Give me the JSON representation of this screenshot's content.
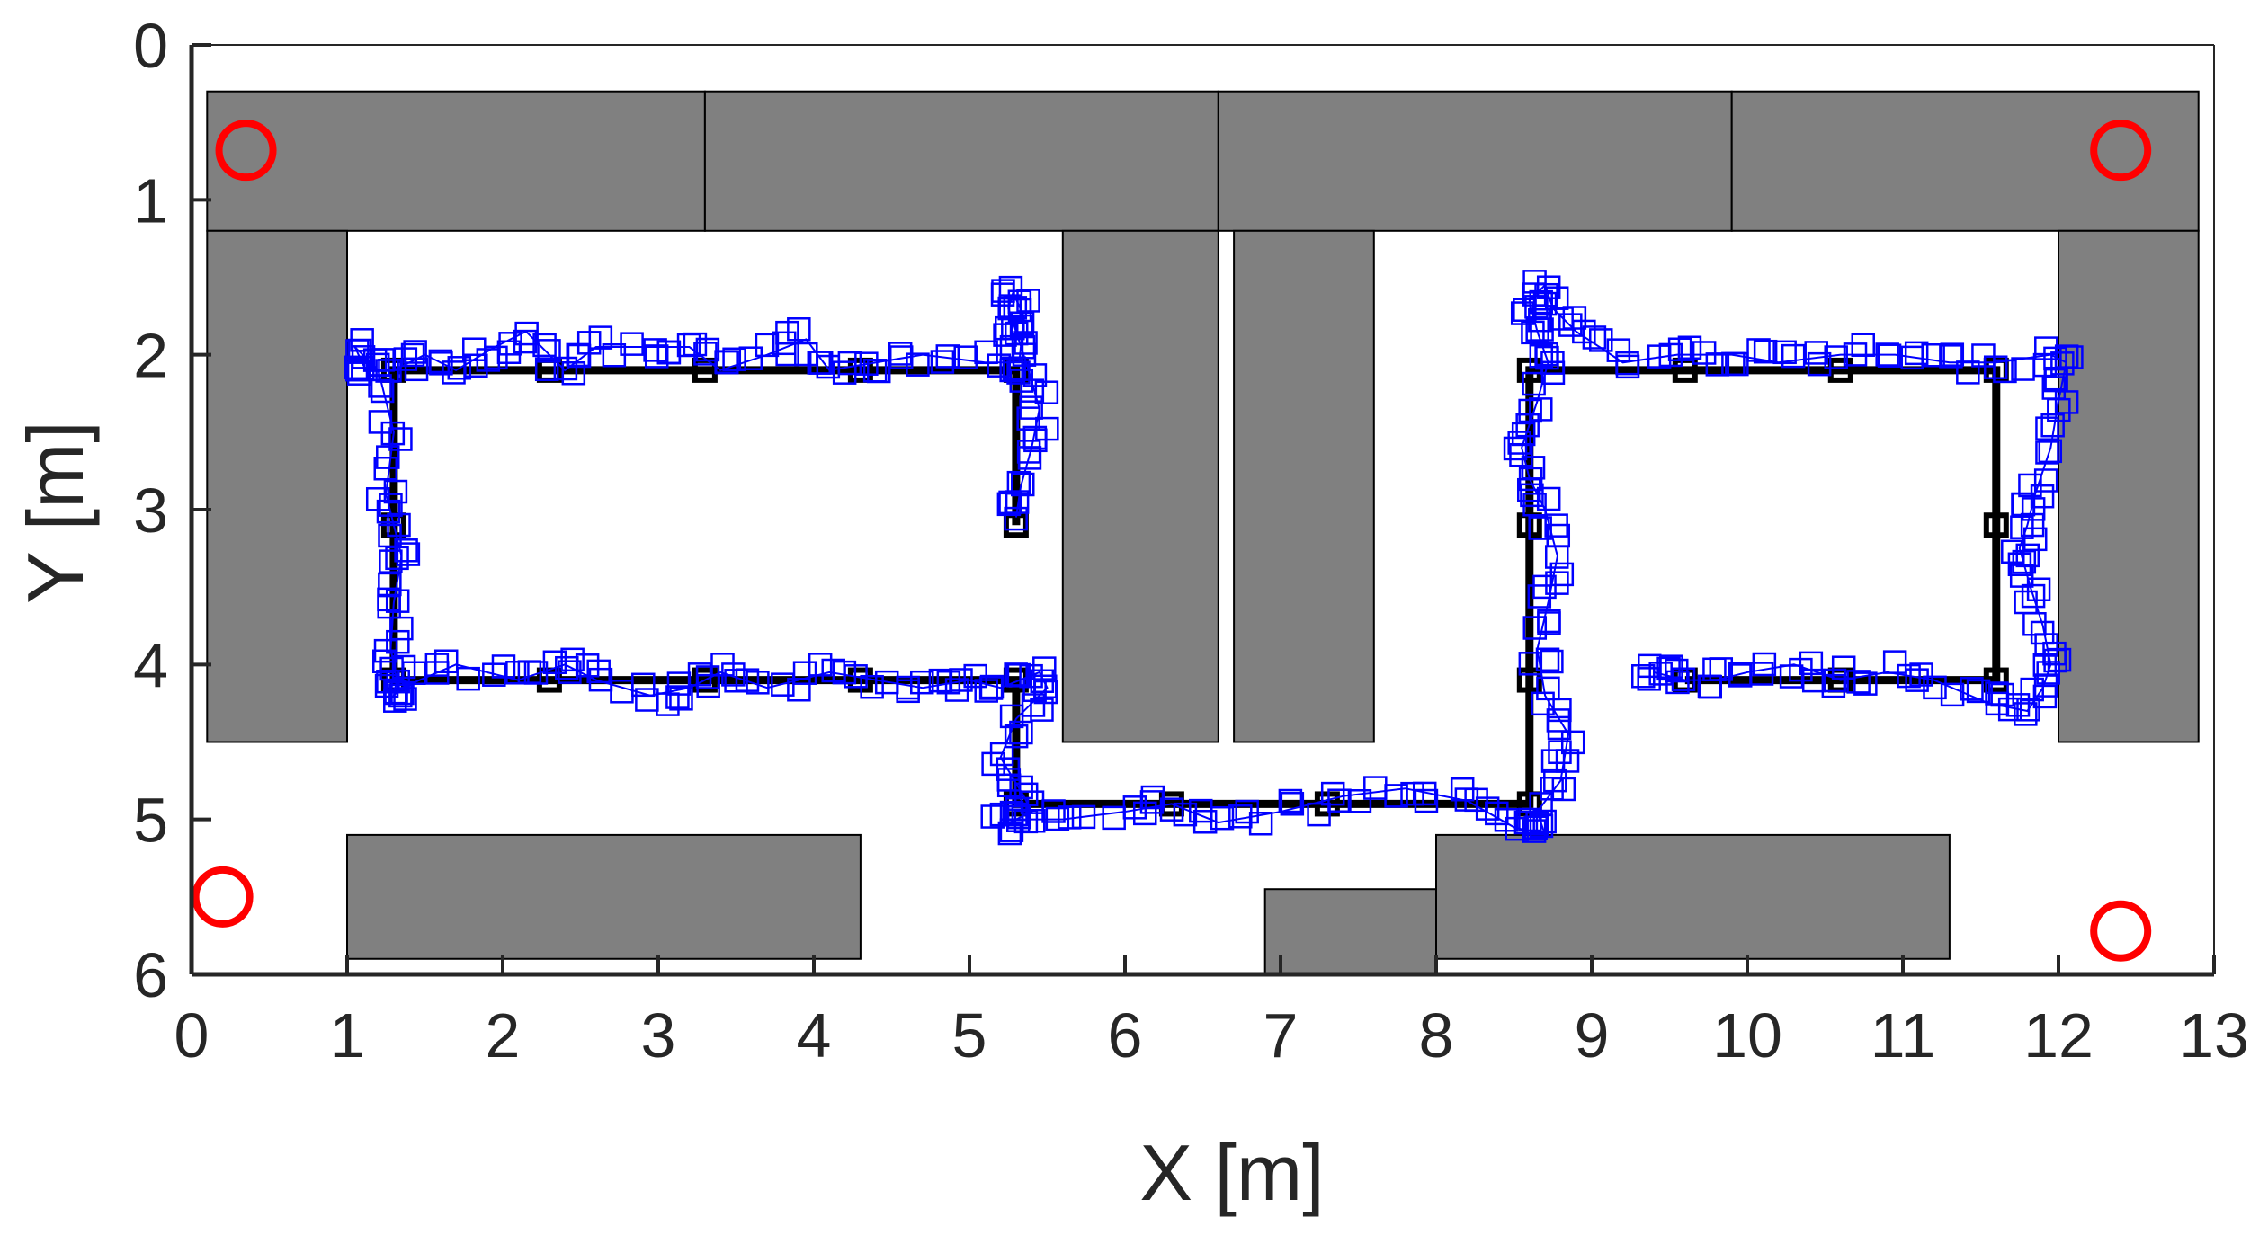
{
  "chart_data": {
    "type": "scatter",
    "title": "",
    "xlabel": "X [m]",
    "ylabel": "Y [m]",
    "xlim": [
      0,
      13
    ],
    "ylim": [
      6,
      0
    ],
    "y_axis_direction": "reversed",
    "grid": false,
    "legend": "none",
    "xticks": [
      "0",
      "1",
      "2",
      "3",
      "4",
      "5",
      "6",
      "7",
      "8",
      "9",
      "10",
      "11",
      "12",
      "13"
    ],
    "yticks": [
      "0",
      "1",
      "2",
      "3",
      "4",
      "5",
      "6"
    ],
    "obstacles": [
      {
        "x0": 0.1,
        "x1": 3.3,
        "y0": 0.3,
        "y1": 1.2
      },
      {
        "x0": 3.3,
        "x1": 6.6,
        "y0": 0.3,
        "y1": 1.2
      },
      {
        "x0": 6.6,
        "x1": 9.9,
        "y0": 0.3,
        "y1": 1.2
      },
      {
        "x0": 9.9,
        "x1": 12.9,
        "y0": 0.3,
        "y1": 1.2
      },
      {
        "x0": 0.1,
        "x1": 1.0,
        "y0": 1.2,
        "y1": 4.5
      },
      {
        "x0": 5.6,
        "x1": 6.6,
        "y0": 1.2,
        "y1": 4.5
      },
      {
        "x0": 6.7,
        "x1": 7.6,
        "y0": 1.2,
        "y1": 4.5
      },
      {
        "x0": 12.0,
        "x1": 12.9,
        "y0": 1.2,
        "y1": 4.5
      },
      {
        "x0": 1.0,
        "x1": 4.3,
        "y0": 5.1,
        "y1": 5.9
      },
      {
        "x0": 6.9,
        "x1": 8.0,
        "y0": 5.45,
        "y1": 6.0
      },
      {
        "x0": 8.0,
        "x1": 11.3,
        "y0": 5.1,
        "y1": 5.9
      }
    ],
    "anchors": [
      {
        "x": 0.35,
        "y": 0.68
      },
      {
        "x": 12.4,
        "y": 0.68
      },
      {
        "x": 0.2,
        "y": 5.5
      },
      {
        "x": 12.4,
        "y": 5.72
      }
    ],
    "reference_path": {
      "x": [
        5.3,
        5.3,
        4.3,
        3.3,
        2.3,
        1.3,
        1.3,
        1.3,
        2.3,
        3.3,
        4.3,
        5.3,
        5.3,
        6.3,
        7.3,
        8.6,
        8.6,
        8.6,
        8.6,
        9.6,
        10.6,
        11.6,
        11.6,
        11.6,
        10.6,
        9.6
      ],
      "y": [
        3.1,
        2.1,
        2.1,
        2.1,
        2.1,
        2.1,
        3.1,
        4.1,
        4.1,
        4.1,
        4.1,
        4.1,
        4.9,
        4.9,
        4.9,
        4.9,
        4.1,
        3.1,
        2.1,
        2.1,
        2.1,
        2.1,
        3.1,
        4.1,
        4.1,
        4.1
      ]
    },
    "estimated_path": {
      "x": [
        5.3,
        5.33,
        5.4,
        5.45,
        5.38,
        5.3,
        5.25,
        5.28,
        5.35,
        5.32,
        5.1,
        4.7,
        4.4,
        4.1,
        3.95,
        3.7,
        3.4,
        3.2,
        2.95,
        2.6,
        2.4,
        2.15,
        1.95,
        1.7,
        1.5,
        1.3,
        1.12,
        1.05,
        1.2,
        1.3,
        1.25,
        1.3,
        1.35,
        1.3,
        1.28,
        1.32,
        1.3,
        1.35,
        1.7,
        2.1,
        2.4,
        2.6,
        2.95,
        3.2,
        3.4,
        3.7,
        4.1,
        4.4,
        4.7,
        5.0,
        5.2,
        5.45,
        5.5,
        5.3,
        5.2,
        5.35,
        5.4,
        5.2,
        5.3,
        5.6,
        6.0,
        6.3,
        6.6,
        7.0,
        7.4,
        7.8,
        8.2,
        8.5,
        8.7,
        8.65,
        8.8,
        8.85,
        8.7,
        8.65,
        8.72,
        8.78,
        8.7,
        8.6,
        8.55,
        8.65,
        8.72,
        8.65,
        8.6,
        8.7,
        8.75,
        8.9,
        9.2,
        9.55,
        9.9,
        10.2,
        10.6,
        10.95,
        11.3,
        11.6,
        11.95,
        12.05,
        12.0,
        11.95,
        11.85,
        11.8,
        11.75,
        11.82,
        11.9,
        11.95,
        11.9,
        11.8,
        11.55,
        11.2,
        10.9,
        10.6,
        10.3,
        10.0,
        9.8,
        9.6,
        9.4
      ],
      "y": [
        3.05,
        2.85,
        2.6,
        2.35,
        2.1,
        1.85,
        1.7,
        1.6,
        1.75,
        2.05,
        2.05,
        2.0,
        2.05,
        2.1,
        1.9,
        2.0,
        2.1,
        1.95,
        1.95,
        1.95,
        2.1,
        1.85,
        1.95,
        2.1,
        2.0,
        2.1,
        2.1,
        1.95,
        2.1,
        2.5,
        2.9,
        3.1,
        3.3,
        3.6,
        3.9,
        4.1,
        4.2,
        4.15,
        4.0,
        4.1,
        4.0,
        4.1,
        4.2,
        4.15,
        4.05,
        4.15,
        4.05,
        4.1,
        4.15,
        4.1,
        4.15,
        4.05,
        4.15,
        4.35,
        4.6,
        4.85,
        4.95,
        5.05,
        5.0,
        5.0,
        4.95,
        4.9,
        5.02,
        4.95,
        4.85,
        4.8,
        4.88,
        5.05,
        5.1,
        4.95,
        4.75,
        4.45,
        4.2,
        3.9,
        3.6,
        3.3,
        3.0,
        2.8,
        2.6,
        2.3,
        2.05,
        1.85,
        1.65,
        1.55,
        1.7,
        1.85,
        2.05,
        2.0,
        2.0,
        2.05,
        2.0,
        2.0,
        2.05,
        2.05,
        2.0,
        2.05,
        2.3,
        2.6,
        2.9,
        3.1,
        3.25,
        3.5,
        3.75,
        4.0,
        4.15,
        4.3,
        4.25,
        4.1,
        4.05,
        4.1,
        4.0,
        4.05,
        4.1,
        4.1,
        4.05
      ]
    },
    "colors": {
      "obstacle_fill": "#808080",
      "obstacle_edge": "#000000",
      "anchor": "#ff0000",
      "reference_path": "#000000",
      "estimated_path": "#0000ff",
      "axes": "#262626",
      "background": "#ffffff"
    },
    "markers": {
      "reference_path": "square",
      "estimated_path": "hollow-square",
      "anchors": "hollow-circle"
    }
  }
}
